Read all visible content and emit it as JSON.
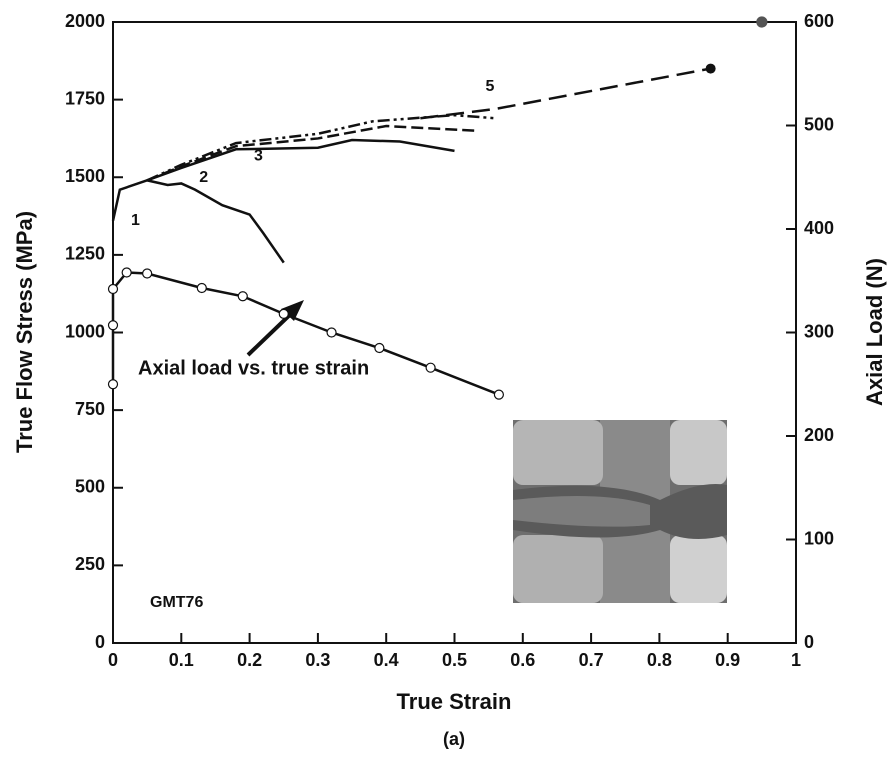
{
  "chart_data": {
    "type": "line",
    "xlabel": "True Strain",
    "ylabel": "True Flow Stress (MPa)",
    "y2label": "Axial Load (N)",
    "caption": "(a)",
    "xlim": [
      0,
      1
    ],
    "xticks": [
      0,
      0.1,
      0.2,
      0.3,
      0.4,
      0.5,
      0.6,
      0.7,
      0.8,
      0.9,
      1
    ],
    "ylim": [
      0,
      2000
    ],
    "yticks": [
      0,
      250,
      500,
      750,
      1000,
      1250,
      1500,
      1750,
      2000
    ],
    "y2lim": [
      0,
      600
    ],
    "y2ticks": [
      0,
      100,
      200,
      300,
      400,
      500,
      600
    ],
    "series": [
      {
        "name": "1",
        "color": "#111",
        "line_style": "solid",
        "x": [
          0,
          0.01,
          0.05,
          0.08,
          0.1,
          0.12,
          0.16,
          0.2,
          0.22,
          0.25
        ],
        "values": [
          1360,
          1460,
          1490,
          1475,
          1480,
          1460,
          1410,
          1380,
          1320,
          1225
        ]
      },
      {
        "name": "2",
        "color": "#111",
        "line_style": "solid",
        "x": [
          0.05,
          0.1,
          0.18,
          0.3,
          0.35,
          0.42,
          0.5
        ],
        "values": [
          1490,
          1530,
          1590,
          1595,
          1620,
          1615,
          1585
        ]
      },
      {
        "name": "3",
        "color": "#111",
        "line_style": "dashed",
        "x": [
          0.05,
          0.1,
          0.18,
          0.3,
          0.4,
          0.53
        ],
        "values": [
          1490,
          1535,
          1600,
          1625,
          1665,
          1650
        ]
      },
      {
        "color": "#111",
        "line_style": "dashdot",
        "x": [
          0.05,
          0.1,
          0.18,
          0.3,
          0.38,
          0.5,
          0.56
        ],
        "values": [
          1490,
          1540,
          1610,
          1640,
          1680,
          1700,
          1690
        ]
      },
      {
        "name": "5",
        "color": "#111",
        "line_style": "longdash",
        "end_marker": true,
        "x": [
          0.45,
          0.56,
          0.875
        ],
        "values": [
          1690,
          1720,
          1850
        ]
      },
      {
        "color": "#111",
        "line_style": "solid",
        "axis": "y2",
        "marker": "open-circle",
        "x": [
          0,
          0,
          0,
          0.02,
          0.05,
          0.13,
          0.19,
          0.25,
          0.32,
          0.39,
          0.465,
          0.565
        ],
        "values": [
          250,
          307,
          342,
          358,
          357,
          343,
          335,
          318,
          300,
          285,
          266,
          240
        ]
      },
      {
        "color": "#555",
        "axis": "y2",
        "marker": "dot",
        "x": [
          0.95
        ],
        "values": [
          600
        ]
      }
    ],
    "annotations": [
      "Axial load vs. true strain",
      "GMT76"
    ]
  }
}
